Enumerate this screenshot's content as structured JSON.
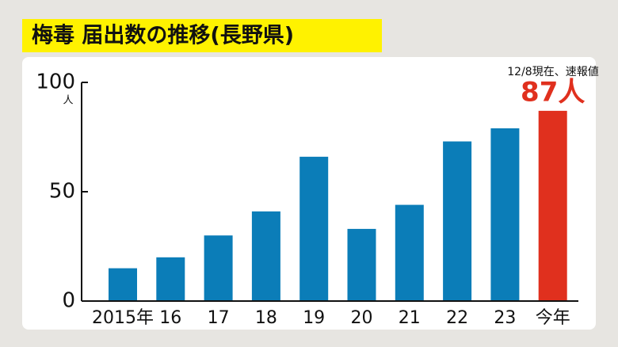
{
  "chart_data": {
    "type": "bar",
    "title": "梅毒 届出数の推移(長野県)",
    "annotation": "12/8現在、速報値",
    "y_unit": "人",
    "categories": [
      "2015年",
      "16",
      "17",
      "18",
      "19",
      "20",
      "21",
      "22",
      "23",
      "今年"
    ],
    "values": [
      15,
      20,
      30,
      41,
      66,
      33,
      44,
      73,
      79,
      87
    ],
    "value_labels": [
      null,
      null,
      null,
      null,
      null,
      null,
      null,
      null,
      null,
      "87人"
    ],
    "colors": [
      "#0b7db8",
      "#0b7db8",
      "#0b7db8",
      "#0b7db8",
      "#0b7db8",
      "#0b7db8",
      "#0b7db8",
      "#0b7db8",
      "#0b7db8",
      "#e0301e"
    ],
    "ylim": [
      0,
      100
    ],
    "yticks": [
      0,
      50,
      100
    ]
  }
}
